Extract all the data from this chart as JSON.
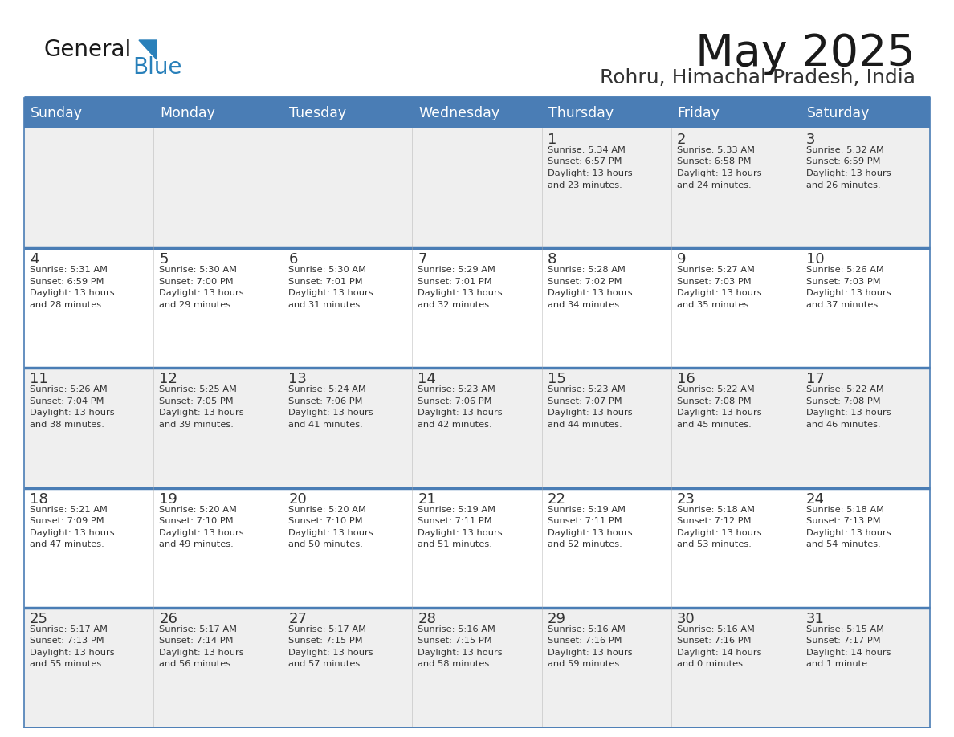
{
  "title": "May 2025",
  "subtitle": "Rohru, Himachal Pradesh, India",
  "days_of_week": [
    "Sunday",
    "Monday",
    "Tuesday",
    "Wednesday",
    "Thursday",
    "Friday",
    "Saturday"
  ],
  "header_bg": "#4A7DB5",
  "header_text": "#FFFFFF",
  "cell_bg_light": "#EFEFEF",
  "cell_bg_white": "#FFFFFF",
  "cell_text": "#333333",
  "day_num_color": "#333333",
  "border_color": "#4A7DB5",
  "week_sep_color": "#4A7DB5",
  "title_color": "#1a1a1a",
  "subtitle_color": "#333333",
  "logo_general_color": "#1a1a1a",
  "logo_blue_color": "#2980BA",
  "weeks": [
    [
      {
        "day": null,
        "lines": []
      },
      {
        "day": null,
        "lines": []
      },
      {
        "day": null,
        "lines": []
      },
      {
        "day": null,
        "lines": []
      },
      {
        "day": 1,
        "lines": [
          "Sunrise: 5:34 AM",
          "Sunset: 6:57 PM",
          "Daylight: 13 hours",
          "and 23 minutes."
        ]
      },
      {
        "day": 2,
        "lines": [
          "Sunrise: 5:33 AM",
          "Sunset: 6:58 PM",
          "Daylight: 13 hours",
          "and 24 minutes."
        ]
      },
      {
        "day": 3,
        "lines": [
          "Sunrise: 5:32 AM",
          "Sunset: 6:59 PM",
          "Daylight: 13 hours",
          "and 26 minutes."
        ]
      }
    ],
    [
      {
        "day": 4,
        "lines": [
          "Sunrise: 5:31 AM",
          "Sunset: 6:59 PM",
          "Daylight: 13 hours",
          "and 28 minutes."
        ]
      },
      {
        "day": 5,
        "lines": [
          "Sunrise: 5:30 AM",
          "Sunset: 7:00 PM",
          "Daylight: 13 hours",
          "and 29 minutes."
        ]
      },
      {
        "day": 6,
        "lines": [
          "Sunrise: 5:30 AM",
          "Sunset: 7:01 PM",
          "Daylight: 13 hours",
          "and 31 minutes."
        ]
      },
      {
        "day": 7,
        "lines": [
          "Sunrise: 5:29 AM",
          "Sunset: 7:01 PM",
          "Daylight: 13 hours",
          "and 32 minutes."
        ]
      },
      {
        "day": 8,
        "lines": [
          "Sunrise: 5:28 AM",
          "Sunset: 7:02 PM",
          "Daylight: 13 hours",
          "and 34 minutes."
        ]
      },
      {
        "day": 9,
        "lines": [
          "Sunrise: 5:27 AM",
          "Sunset: 7:03 PM",
          "Daylight: 13 hours",
          "and 35 minutes."
        ]
      },
      {
        "day": 10,
        "lines": [
          "Sunrise: 5:26 AM",
          "Sunset: 7:03 PM",
          "Daylight: 13 hours",
          "and 37 minutes."
        ]
      }
    ],
    [
      {
        "day": 11,
        "lines": [
          "Sunrise: 5:26 AM",
          "Sunset: 7:04 PM",
          "Daylight: 13 hours",
          "and 38 minutes."
        ]
      },
      {
        "day": 12,
        "lines": [
          "Sunrise: 5:25 AM",
          "Sunset: 7:05 PM",
          "Daylight: 13 hours",
          "and 39 minutes."
        ]
      },
      {
        "day": 13,
        "lines": [
          "Sunrise: 5:24 AM",
          "Sunset: 7:06 PM",
          "Daylight: 13 hours",
          "and 41 minutes."
        ]
      },
      {
        "day": 14,
        "lines": [
          "Sunrise: 5:23 AM",
          "Sunset: 7:06 PM",
          "Daylight: 13 hours",
          "and 42 minutes."
        ]
      },
      {
        "day": 15,
        "lines": [
          "Sunrise: 5:23 AM",
          "Sunset: 7:07 PM",
          "Daylight: 13 hours",
          "and 44 minutes."
        ]
      },
      {
        "day": 16,
        "lines": [
          "Sunrise: 5:22 AM",
          "Sunset: 7:08 PM",
          "Daylight: 13 hours",
          "and 45 minutes."
        ]
      },
      {
        "day": 17,
        "lines": [
          "Sunrise: 5:22 AM",
          "Sunset: 7:08 PM",
          "Daylight: 13 hours",
          "and 46 minutes."
        ]
      }
    ],
    [
      {
        "day": 18,
        "lines": [
          "Sunrise: 5:21 AM",
          "Sunset: 7:09 PM",
          "Daylight: 13 hours",
          "and 47 minutes."
        ]
      },
      {
        "day": 19,
        "lines": [
          "Sunrise: 5:20 AM",
          "Sunset: 7:10 PM",
          "Daylight: 13 hours",
          "and 49 minutes."
        ]
      },
      {
        "day": 20,
        "lines": [
          "Sunrise: 5:20 AM",
          "Sunset: 7:10 PM",
          "Daylight: 13 hours",
          "and 50 minutes."
        ]
      },
      {
        "day": 21,
        "lines": [
          "Sunrise: 5:19 AM",
          "Sunset: 7:11 PM",
          "Daylight: 13 hours",
          "and 51 minutes."
        ]
      },
      {
        "day": 22,
        "lines": [
          "Sunrise: 5:19 AM",
          "Sunset: 7:11 PM",
          "Daylight: 13 hours",
          "and 52 minutes."
        ]
      },
      {
        "day": 23,
        "lines": [
          "Sunrise: 5:18 AM",
          "Sunset: 7:12 PM",
          "Daylight: 13 hours",
          "and 53 minutes."
        ]
      },
      {
        "day": 24,
        "lines": [
          "Sunrise: 5:18 AM",
          "Sunset: 7:13 PM",
          "Daylight: 13 hours",
          "and 54 minutes."
        ]
      }
    ],
    [
      {
        "day": 25,
        "lines": [
          "Sunrise: 5:17 AM",
          "Sunset: 7:13 PM",
          "Daylight: 13 hours",
          "and 55 minutes."
        ]
      },
      {
        "day": 26,
        "lines": [
          "Sunrise: 5:17 AM",
          "Sunset: 7:14 PM",
          "Daylight: 13 hours",
          "and 56 minutes."
        ]
      },
      {
        "day": 27,
        "lines": [
          "Sunrise: 5:17 AM",
          "Sunset: 7:15 PM",
          "Daylight: 13 hours",
          "and 57 minutes."
        ]
      },
      {
        "day": 28,
        "lines": [
          "Sunrise: 5:16 AM",
          "Sunset: 7:15 PM",
          "Daylight: 13 hours",
          "and 58 minutes."
        ]
      },
      {
        "day": 29,
        "lines": [
          "Sunrise: 5:16 AM",
          "Sunset: 7:16 PM",
          "Daylight: 13 hours",
          "and 59 minutes."
        ]
      },
      {
        "day": 30,
        "lines": [
          "Sunrise: 5:16 AM",
          "Sunset: 7:16 PM",
          "Daylight: 14 hours",
          "and 0 minutes."
        ]
      },
      {
        "day": 31,
        "lines": [
          "Sunrise: 5:15 AM",
          "Sunset: 7:17 PM",
          "Daylight: 14 hours",
          "and 1 minute."
        ]
      }
    ]
  ]
}
